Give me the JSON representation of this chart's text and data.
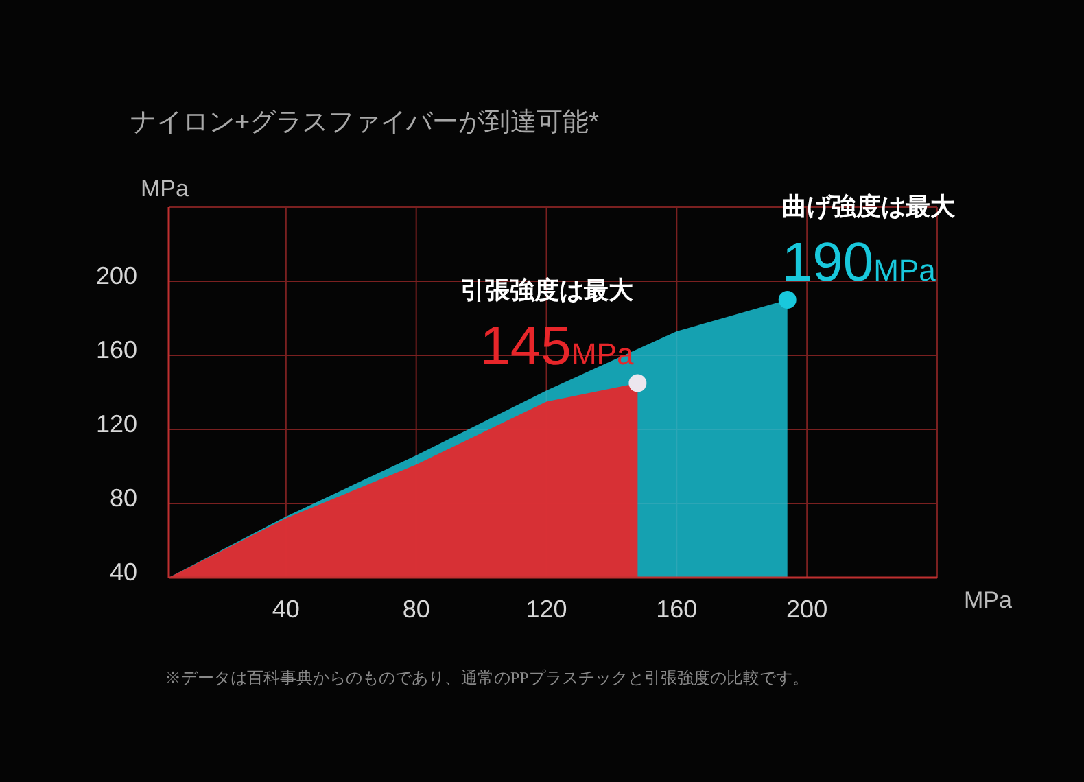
{
  "chart_data": {
    "type": "area",
    "title": "ナイロン+グラスファイバーが到達可能*",
    "xlabel": "MPa",
    "ylabel": "MPa",
    "xlim": [
      4,
      240
    ],
    "ylim": [
      40,
      240
    ],
    "xticks": [
      40,
      80,
      120,
      160,
      200
    ],
    "yticks": [
      40,
      80,
      120,
      160,
      200
    ],
    "grid": true,
    "series": [
      {
        "color": "#19c8dc",
        "x": [
          4,
          40,
          80,
          120,
          160,
          194
        ],
        "values": [
          40,
          73,
          106,
          141,
          173,
          190
        ]
      },
      {
        "color": "#e8262a",
        "x": [
          4,
          40,
          80,
          120,
          148
        ],
        "values": [
          40,
          72,
          101,
          135,
          145
        ]
      }
    ],
    "annotations": [
      "曲げ強度は最大",
      {
        "text": "190MPa",
        "x": 194,
        "y": 190
      },
      "引張強度は最大",
      {
        "text": "145MPa",
        "x": 148,
        "y": 145
      },
      "※データは百科事典からのものであり、通常のPPプラスチックと引張強度の比較です。"
    ]
  }
}
